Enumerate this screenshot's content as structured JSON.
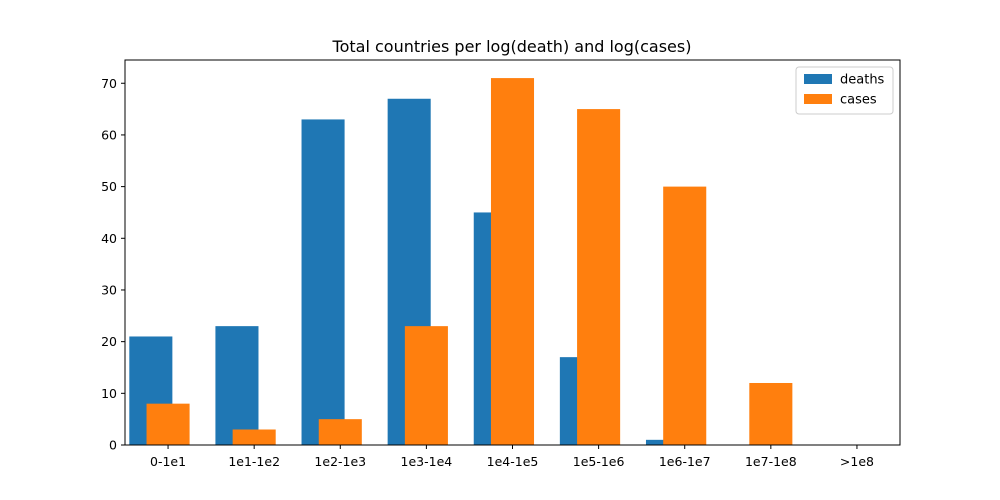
{
  "chart_data": {
    "type": "bar",
    "title": "Total countries per log(death) and log(cases)",
    "xlabel": "",
    "ylabel": "",
    "categories": [
      "0-1e1",
      "1e1-1e2",
      "1e2-1e3",
      "1e3-1e4",
      "1e4-1e5",
      "1e5-1e6",
      "1e6-1e7",
      "1e7-1e8",
      ">1e8"
    ],
    "series": [
      {
        "name": "deaths",
        "color": "#1f77b4",
        "values": [
          21,
          23,
          63,
          67,
          45,
          17,
          1,
          0,
          0
        ]
      },
      {
        "name": "cases",
        "color": "#ff7f0e",
        "values": [
          8,
          3,
          5,
          23,
          71,
          65,
          50,
          12,
          0
        ]
      }
    ],
    "ylim": [
      0,
      74.5
    ],
    "yticks": [
      0,
      10,
      20,
      30,
      40,
      50,
      60,
      70
    ],
    "grid": false,
    "legend_position": "top-right"
  }
}
